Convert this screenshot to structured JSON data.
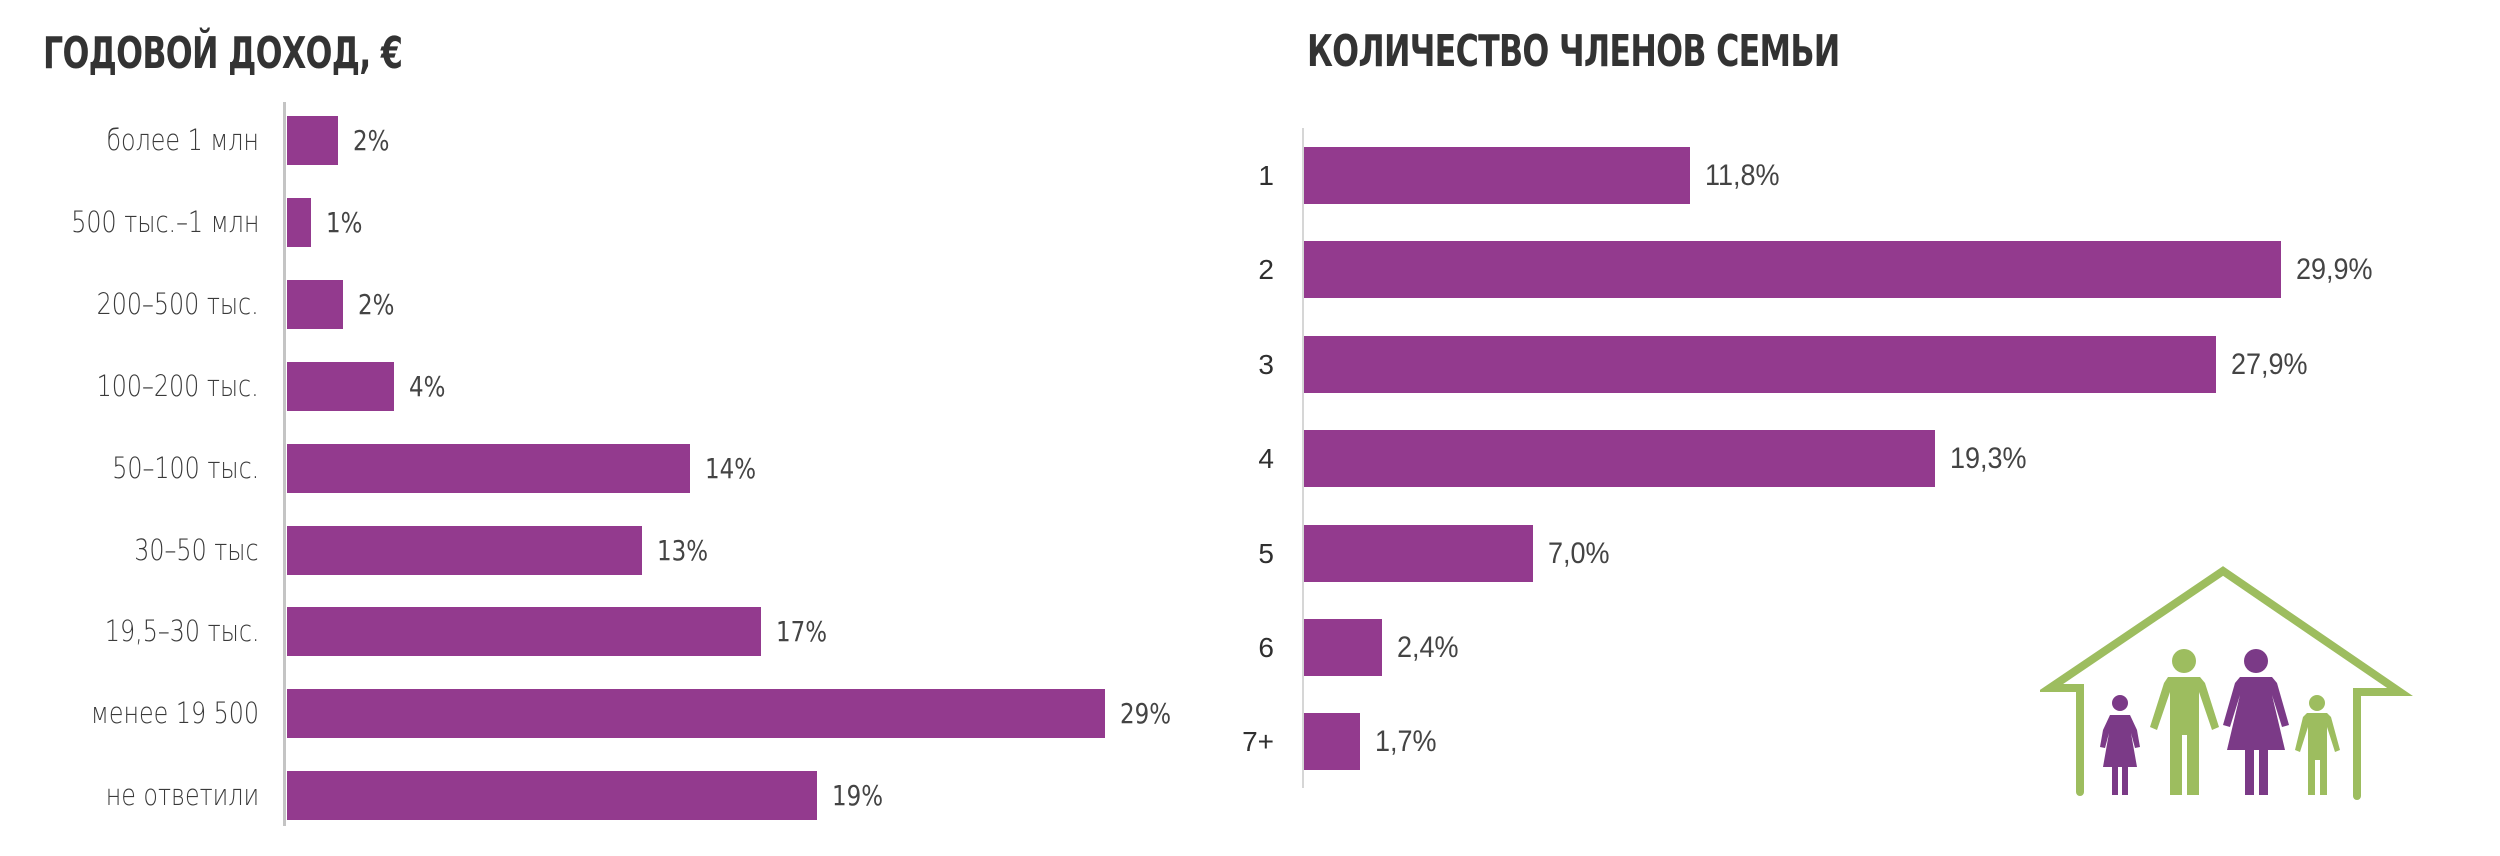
{
  "charts": {
    "left": {
      "title": "ГОДОВОЙ ДОХОД, €",
      "bar_color": "#933a8e",
      "items": [
        {
          "label": "более 1 млн",
          "value": 1.8,
          "value_label": "2%"
        },
        {
          "label": "500 тыс.–1 млн",
          "value": 0.85,
          "value_label": "1%"
        },
        {
          "label": "200–500 тыс.",
          "value": 2.0,
          "value_label": "2%"
        },
        {
          "label": "100–200 тыс.",
          "value": 3.8,
          "value_label": "4%"
        },
        {
          "label": "50–100 тыс.",
          "value": 14.3,
          "value_label": "14%"
        },
        {
          "label": "30–50 тыс",
          "value": 12.6,
          "value_label": "13%"
        },
        {
          "label": "19,5–30 тыс.",
          "value": 16.8,
          "value_label": "17%"
        },
        {
          "label": "менее 19 500",
          "value": 29.0,
          "value_label": "29%"
        },
        {
          "label": "не ответили",
          "value": 18.8,
          "value_label": "19%"
        }
      ]
    },
    "right": {
      "title": "КОЛИЧЕСТВО ЧЛЕНОВ СЕМЬИ",
      "bar_color": "#933a8e",
      "items": [
        {
          "label": "1",
          "value": 11.8,
          "value_label": "11,8%"
        },
        {
          "label": "2",
          "value": 29.9,
          "value_label": "29,9%"
        },
        {
          "label": "3",
          "value": 27.9,
          "value_label": "27,9%"
        },
        {
          "label": "4",
          "value": 19.3,
          "value_label": "19,3%"
        },
        {
          "label": "5",
          "value": 7.0,
          "value_label": "7,0%"
        },
        {
          "label": "6",
          "value": 2.4,
          "value_label": "2,4%"
        },
        {
          "label": "7+",
          "value": 1.7,
          "value_label": "1,7%"
        }
      ]
    }
  },
  "illustration": {
    "icon": "family-house-icon",
    "house_color": "#9dbd5f",
    "figure_colors": {
      "purple": "#7b3a87",
      "green": "#9dbd5f"
    }
  },
  "chart_data": [
    {
      "type": "bar",
      "orientation": "horizontal",
      "title": "ГОДОВОЙ ДОХОД, €",
      "xlabel": "",
      "ylabel": "",
      "categories": [
        "более 1 млн",
        "500 тыс.–1 млн",
        "200–500 тыс.",
        "100–200 тыс.",
        "50–100 тыс.",
        "30–50 тыс",
        "19,5–30 тыс.",
        "менее 19 500",
        "не ответили"
      ],
      "values": [
        2,
        1,
        2,
        4,
        14,
        13,
        17,
        29,
        19
      ],
      "value_labels": [
        "2%",
        "1%",
        "2%",
        "4%",
        "14%",
        "13%",
        "17%",
        "29%",
        "19%"
      ],
      "unit": "%",
      "grid": false,
      "legend": null
    },
    {
      "type": "bar",
      "orientation": "horizontal",
      "title": "КОЛИЧЕСТВО ЧЛЕНОВ СЕМЬИ",
      "xlabel": "",
      "ylabel": "",
      "categories": [
        "1",
        "2",
        "3",
        "4",
        "5",
        "6",
        "7+"
      ],
      "values": [
        11.8,
        29.9,
        27.9,
        19.3,
        7.0,
        2.4,
        1.7
      ],
      "value_labels": [
        "11,8%",
        "29,9%",
        "27,9%",
        "19,3%",
        "7,0%",
        "2,4%",
        "1,7%"
      ],
      "unit": "%",
      "grid": false,
      "legend": null
    }
  ]
}
